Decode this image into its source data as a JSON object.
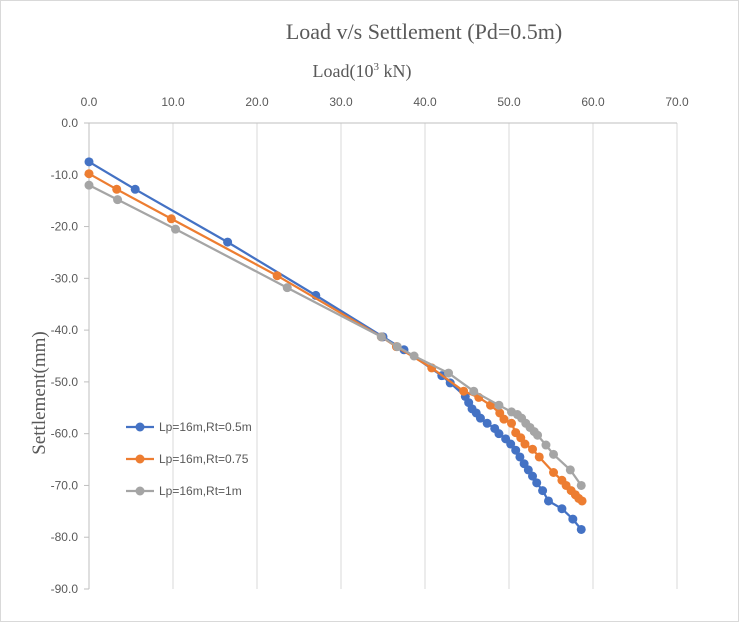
{
  "chart_data": {
    "type": "scatter",
    "title": "Load v/s Settlement (Pd=0.5m)",
    "xlabel": "Load(10",
    "xlabel_superscript": "3",
    "xlabel_suffix": " kN)",
    "ylabel": "Settlement(mm)",
    "xlim": [
      0,
      70
    ],
    "ylim": [
      -90,
      0
    ],
    "x_ticks": [
      "0.0",
      "10.0",
      "20.0",
      "30.0",
      "40.0",
      "50.0",
      "60.0",
      "70.0"
    ],
    "y_ticks": [
      "0.0",
      "-10.0",
      "-20.0",
      "-30.0",
      "-40.0",
      "-50.0",
      "-60.0",
      "-70.0",
      "-80.0",
      "-90.0"
    ],
    "x_axis_position": "top",
    "grid": "vertical",
    "legend_position": "left-middle",
    "series": [
      {
        "name": "Lp=16m,Rt=0.5m",
        "color": "#4472c4",
        "x": [
          0.0,
          5.5,
          16.5,
          27.0,
          35.0,
          37.5,
          42.0,
          43.0,
          44.8,
          45.2,
          45.6,
          46.1,
          46.6,
          47.4,
          48.3,
          48.8,
          49.6,
          50.2,
          50.8,
          51.3,
          51.8,
          52.3,
          52.8,
          53.3,
          54.0,
          54.7,
          56.3,
          57.6,
          58.6
        ],
        "y": [
          -7.5,
          -12.8,
          -23.0,
          -33.3,
          -41.3,
          -43.8,
          -48.8,
          -50.2,
          -52.8,
          -54.0,
          -55.2,
          -56.0,
          -57.0,
          -58.0,
          -59.0,
          -60.0,
          -61.0,
          -62.0,
          -63.2,
          -64.5,
          -65.8,
          -67.0,
          -68.2,
          -69.5,
          -71.0,
          -73.0,
          -74.5,
          -76.5,
          -78.5
        ]
      },
      {
        "name": "Lp=16m,Rt=0.75",
        "color": "#ed7d31",
        "x": [
          0.0,
          3.3,
          9.8,
          22.4,
          34.8,
          36.6,
          40.8,
          44.6,
          46.4,
          47.8,
          48.9,
          49.4,
          50.3,
          50.8,
          51.4,
          51.9,
          52.8,
          53.6,
          55.3,
          56.3,
          56.8,
          57.4,
          57.9,
          58.3,
          58.7
        ],
        "y": [
          -9.8,
          -12.8,
          -18.5,
          -29.5,
          -41.3,
          -43.2,
          -47.3,
          -51.8,
          -53.0,
          -54.5,
          -56.0,
          -57.2,
          -58.0,
          -59.8,
          -60.8,
          -62.0,
          -63.0,
          -64.5,
          -67.5,
          -69.0,
          -70.0,
          -71.0,
          -71.8,
          -72.5,
          -73.0
        ]
      },
      {
        "name": "Lp=16m,Rt=1m",
        "color": "#a5a5a5",
        "x": [
          0.0,
          3.4,
          10.3,
          23.6,
          34.8,
          36.7,
          38.7,
          42.8,
          45.8,
          48.8,
          50.3,
          51.0,
          51.5,
          52.0,
          52.5,
          53.0,
          53.4,
          54.4,
          55.3,
          57.3,
          58.6
        ],
        "y": [
          -12.0,
          -14.8,
          -20.5,
          -31.8,
          -41.3,
          -43.2,
          -45.0,
          -48.3,
          -51.8,
          -54.5,
          -55.8,
          -56.3,
          -57.0,
          -58.0,
          -58.8,
          -59.6,
          -60.3,
          -62.2,
          -64.0,
          -67.0,
          -70.0
        ]
      }
    ]
  }
}
